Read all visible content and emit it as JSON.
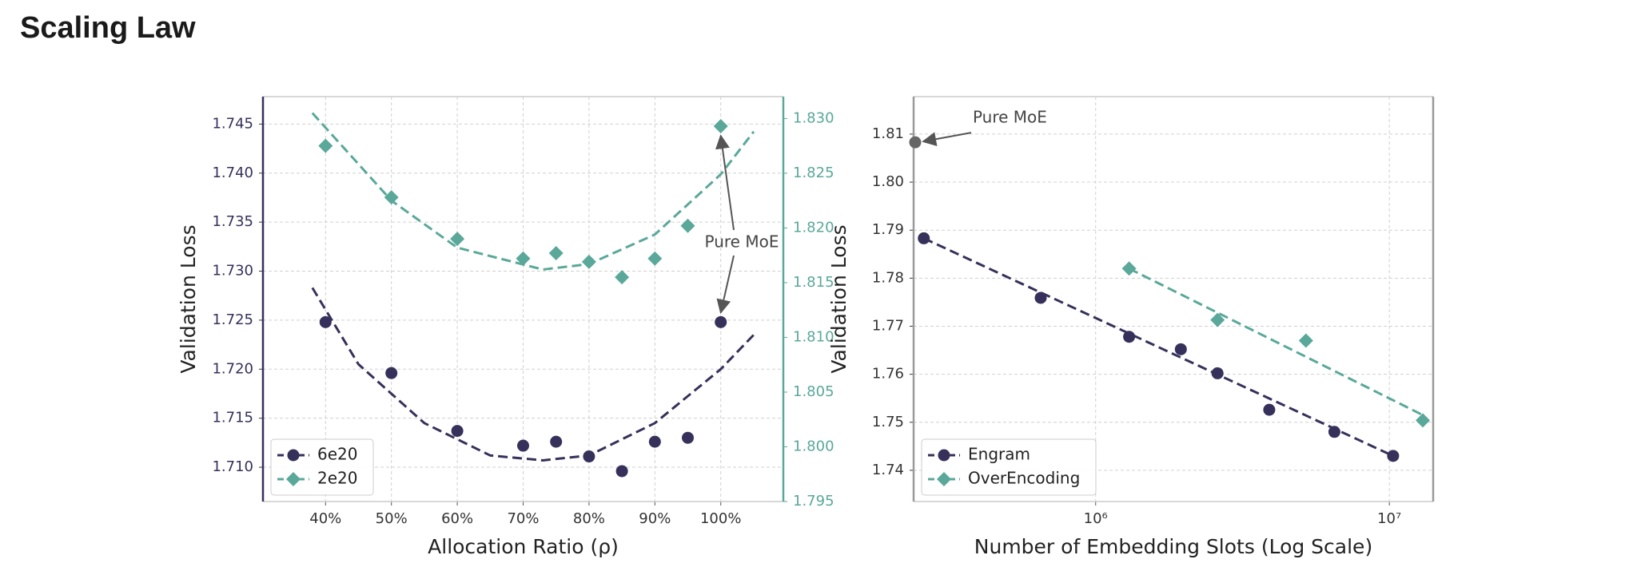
{
  "title": "Scaling Law",
  "chart_data": [
    {
      "type": "scatter",
      "xlabel": "Allocation Ratio (ρ)",
      "ylabel": "Validation Loss",
      "xlim": [
        30.5,
        109.5
      ],
      "xticks": [
        {
          "value": 40,
          "label": "40%"
        },
        {
          "value": 50,
          "label": "50%"
        },
        {
          "value": 60,
          "label": "60%"
        },
        {
          "value": 70,
          "label": "70%"
        },
        {
          "value": 80,
          "label": "80%"
        },
        {
          "value": 90,
          "label": "90%"
        },
        {
          "value": 100,
          "label": "100%"
        }
      ],
      "ylim": [
        1.7065,
        1.7478
      ],
      "yticks": [
        {
          "value": 1.71,
          "label": "1.710"
        },
        1.715,
        {
          "value": 1.72,
          "label": "1.720"
        },
        1.725,
        {
          "value": 1.73,
          "label": "1.730"
        },
        1.735,
        {
          "value": 1.74,
          "label": "1.740"
        },
        1.745
      ],
      "y2lim": [
        1.795,
        1.832
      ],
      "y2ticks": [
        1.795,
        {
          "value": 1.8,
          "label": "1.800"
        },
        1.805,
        {
          "value": 1.81,
          "label": "1.810"
        },
        1.815,
        {
          "value": 1.82,
          "label": "1.820"
        },
        1.825,
        {
          "value": 1.83,
          "label": "1.830"
        }
      ],
      "grid": true,
      "legend": "lower left",
      "annotation": {
        "text": "Pure MoE"
      },
      "series": [
        {
          "name": "6e20",
          "color": "#35315a",
          "marker": "circle",
          "x": [
            40,
            50,
            60,
            70,
            75,
            80,
            85,
            90,
            95,
            100
          ],
          "values": [
            1.7248,
            1.7196,
            1.7137,
            1.7122,
            1.7126,
            1.7111,
            1.7096,
            1.7126,
            1.713,
            1.7248
          ],
          "fit": {
            "x": [
              38,
              45,
              55,
              65,
              73,
              80,
              90,
              100,
              105
            ],
            "values": [
              1.7283,
              1.7205,
              1.7145,
              1.7112,
              1.7107,
              1.7112,
              1.7145,
              1.72,
              1.7235
            ]
          }
        },
        {
          "name": "2e20",
          "color": "#5aa89a",
          "marker": "diamond",
          "axis": "y2",
          "x": [
            40,
            50,
            60,
            70,
            75,
            80,
            85,
            90,
            95,
            100
          ],
          "values": [
            1.8275,
            1.8228,
            1.819,
            1.8172,
            1.8177,
            1.8169,
            1.8155,
            1.8172,
            1.8202,
            1.8293
          ],
          "fit": {
            "x": [
              38,
              50,
              60,
              73,
              80,
              90,
              100,
              105
            ],
            "values": [
              1.8305,
              1.8225,
              1.8182,
              1.8162,
              1.8167,
              1.8194,
              1.8249,
              1.8288
            ]
          }
        }
      ]
    },
    {
      "type": "scatter",
      "xlabel": "Number of Embedding Slots (Log Scale)",
      "ylabel": "Validation Loss",
      "xscale": "log",
      "xlim": [
        240000,
        14100000
      ],
      "xticks": [
        {
          "value": 1000000,
          "label": "10⁶"
        },
        {
          "value": 10000000,
          "label": "10⁷"
        }
      ],
      "ylim": [
        1.7335,
        1.8178
      ],
      "yticks": [
        1.74,
        1.75,
        1.76,
        1.77,
        1.78,
        1.79,
        {
          "value": 1.8,
          "label": "1.80"
        },
        1.81
      ],
      "grid": true,
      "legend": "lower left",
      "annotation": {
        "text": "Pure MoE",
        "x": 243000,
        "y": 1.8083,
        "color": "#666666"
      },
      "series": [
        {
          "name": "Engram",
          "color": "#35315a",
          "marker": "circle",
          "x": [
            260000,
            650000,
            1300000,
            1950000,
            2600000,
            3900000,
            6500000,
            10300000
          ],
          "values": [
            1.7883,
            1.7759,
            1.7678,
            1.7652,
            1.7602,
            1.7526,
            1.748,
            1.743
          ],
          "fit": {
            "x": [
              260000,
              10300000
            ],
            "values": [
              1.7883,
              1.743
            ]
          }
        },
        {
          "name": "OverEncoding",
          "color": "#5aa89a",
          "marker": "diamond",
          "x": [
            1300000,
            2600000,
            5200000,
            13000000
          ],
          "values": [
            1.782,
            1.7713,
            1.767,
            1.7504
          ],
          "fit": {
            "x": [
              1300000,
              13000000
            ],
            "values": [
              1.782,
              1.7515
            ]
          }
        }
      ]
    }
  ]
}
